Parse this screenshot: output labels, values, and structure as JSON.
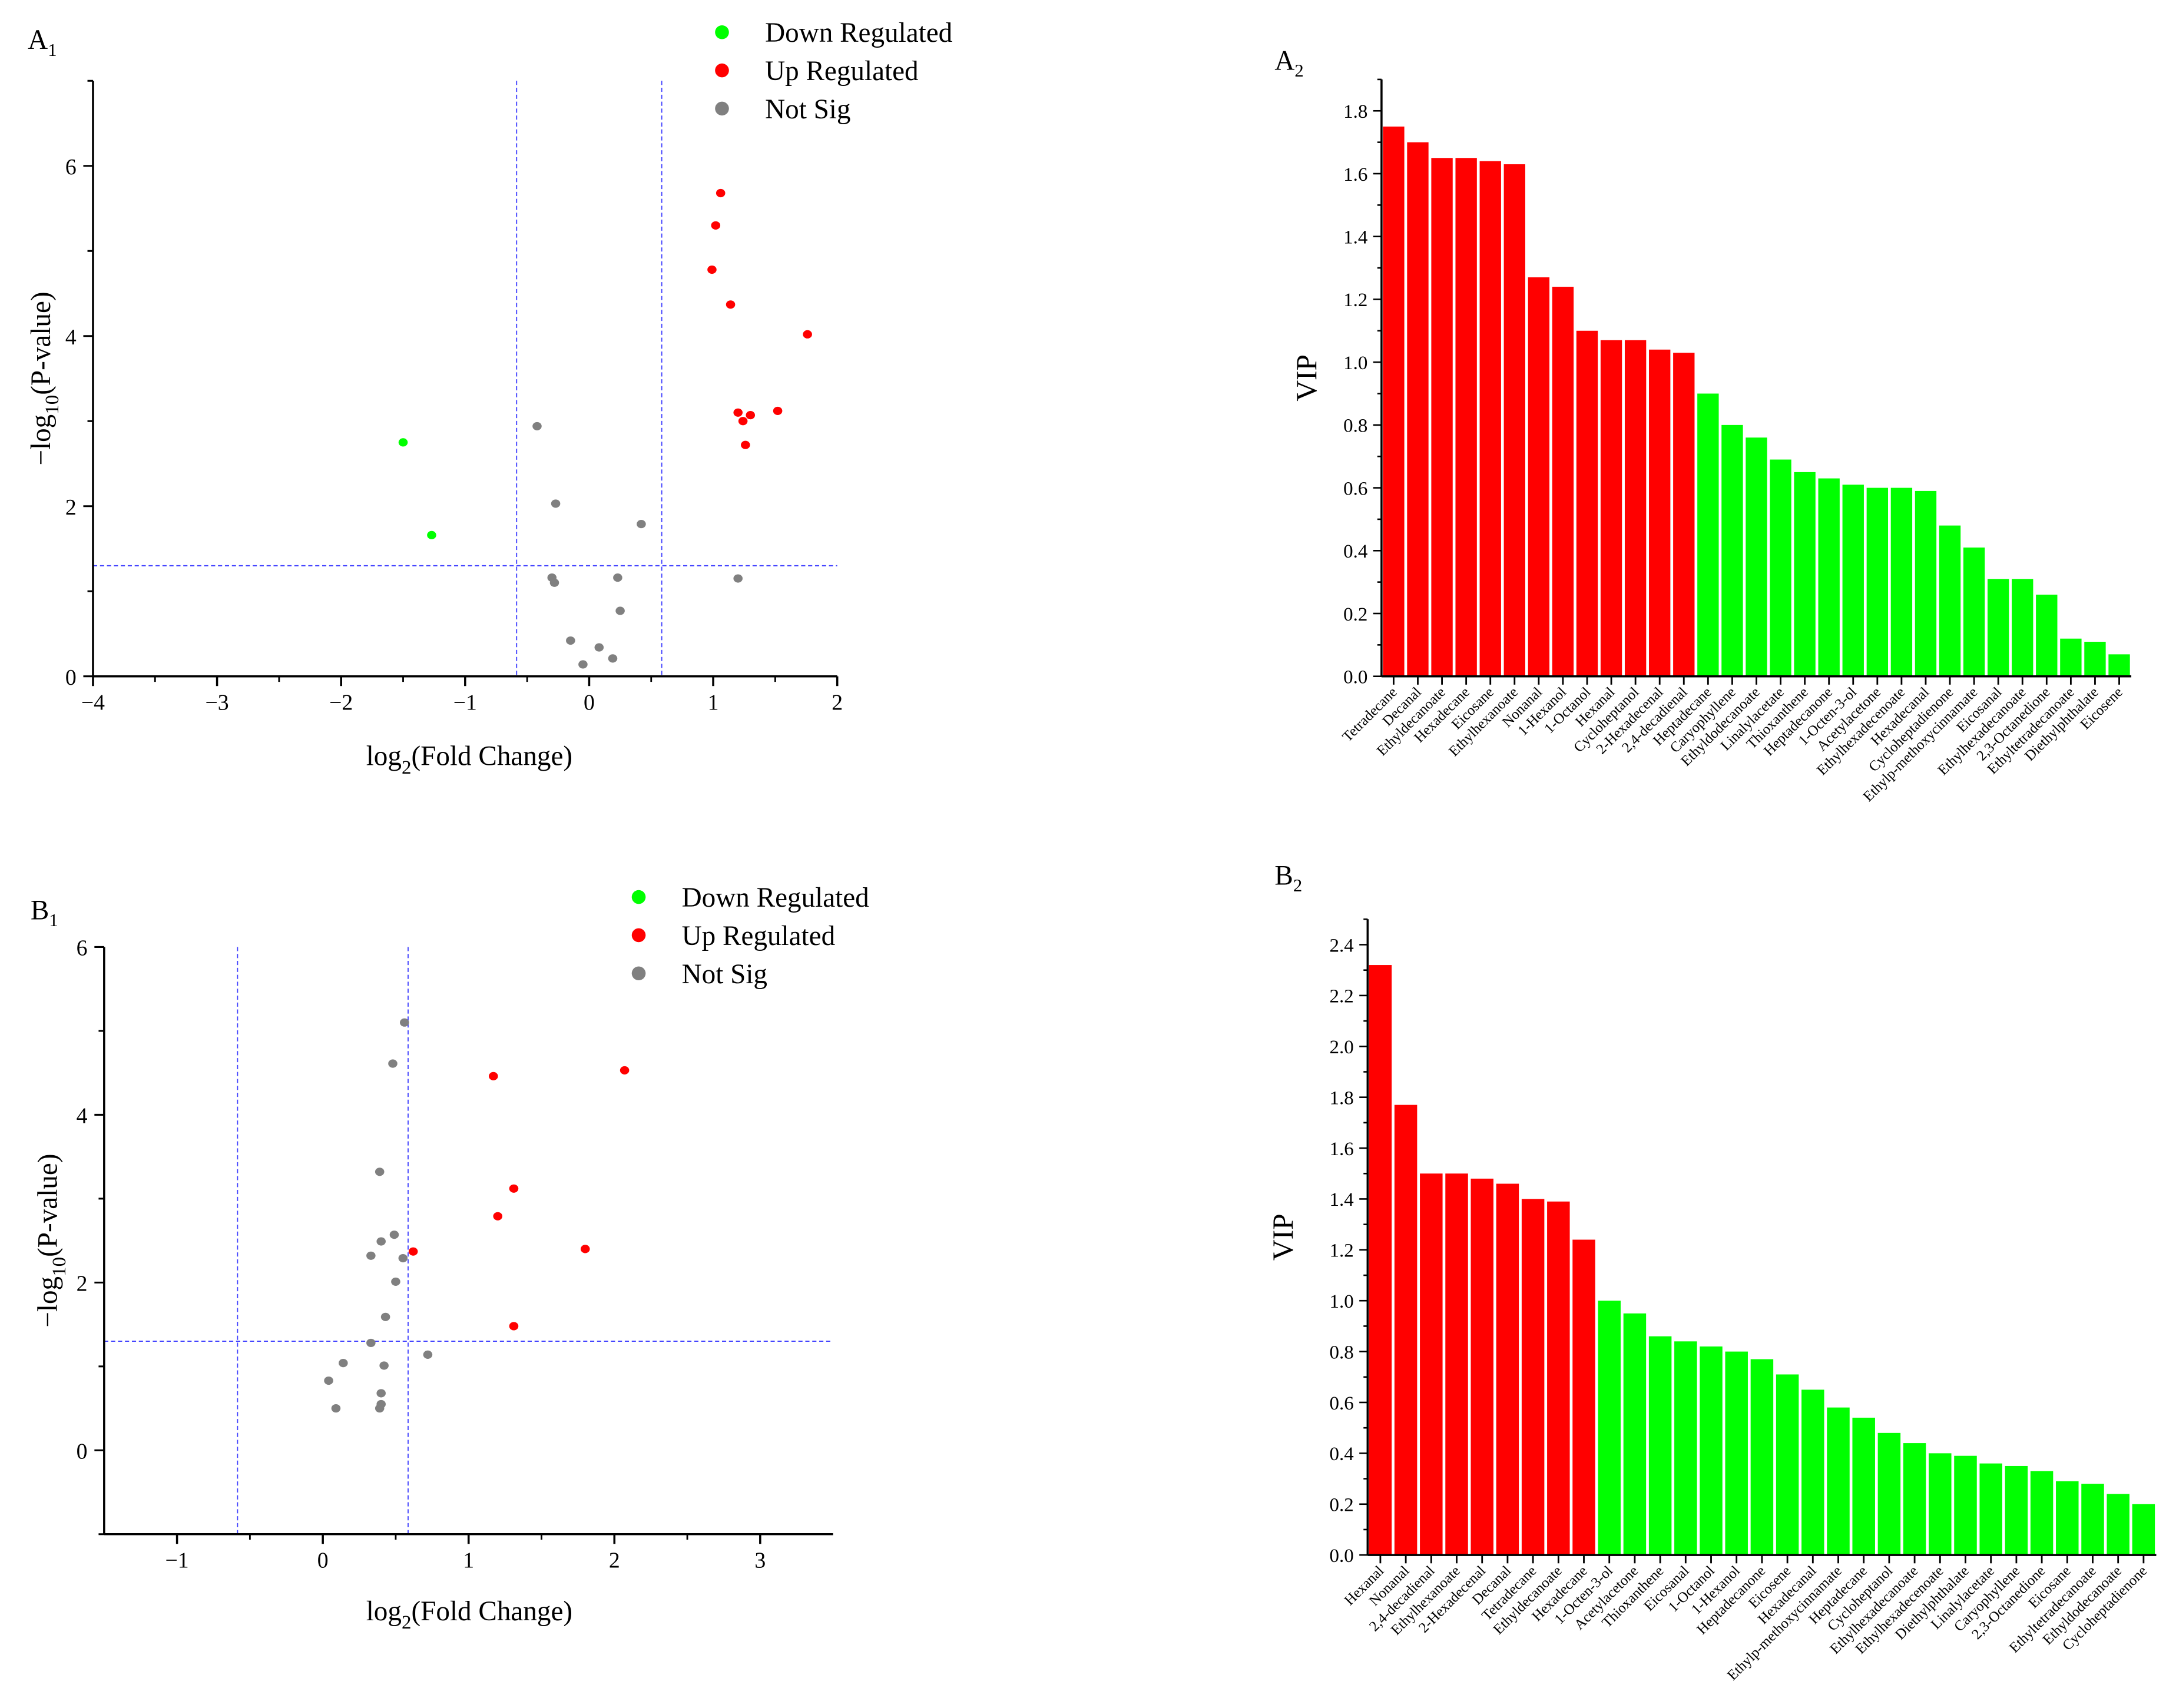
{
  "colors": {
    "down": "#00ff00",
    "up": "#ff0000",
    "notsig": "#808080",
    "threshold": "#4444ff",
    "bar_up": "#ff0000",
    "bar_down": "#00ff00"
  },
  "chart_data": [
    {
      "id": "A1",
      "panel": {
        "letter": "A",
        "sub": "1"
      },
      "type": "scatter",
      "xlabel": {
        "pre": "log",
        "sub": "2",
        "post": "(Fold Change)"
      },
      "ylabel": {
        "pre": "−log",
        "sub": "10",
        "post": "(P-value)"
      },
      "xlim": [
        -4,
        2
      ],
      "ylim": [
        0,
        7
      ],
      "xticks": [
        -4,
        -3,
        -2,
        -1,
        0,
        1,
        2
      ],
      "xtick_labels": [
        "−4",
        "−3",
        "−2",
        "−1",
        "0",
        "1",
        "2"
      ],
      "yticks": [
        0,
        2,
        4,
        6
      ],
      "ytick_labels": [
        "0",
        "2",
        "4",
        "6"
      ],
      "thresholds": {
        "x": [
          -0.585,
          0.585
        ],
        "y": 1.3
      },
      "legend": {
        "placement": "top-center",
        "entries": [
          "Down Regulated",
          "Up Regulated",
          "Not Sig"
        ]
      },
      "series": [
        {
          "name": "Down Regulated",
          "key": "down",
          "points": [
            [
              -1.5,
              2.75
            ],
            [
              -1.27,
              1.66
            ]
          ]
        },
        {
          "name": "Up Regulated",
          "key": "up",
          "points": [
            [
              1.06,
              5.68
            ],
            [
              1.02,
              5.3
            ],
            [
              0.99,
              4.78
            ],
            [
              1.14,
              4.37
            ],
            [
              1.76,
              4.02
            ],
            [
              1.2,
              3.1
            ],
            [
              1.24,
              3.0
            ],
            [
              1.3,
              3.07
            ],
            [
              1.52,
              3.12
            ],
            [
              1.26,
              2.72
            ]
          ]
        },
        {
          "name": "Not Sig",
          "key": "notsig",
          "points": [
            [
              -0.42,
              2.94
            ],
            [
              -0.27,
              2.03
            ],
            [
              0.42,
              1.79
            ],
            [
              -0.3,
              1.16
            ],
            [
              -0.28,
              1.1
            ],
            [
              0.23,
              1.16
            ],
            [
              0.25,
              0.77
            ],
            [
              -0.15,
              0.42
            ],
            [
              0.08,
              0.34
            ],
            [
              0.19,
              0.21
            ],
            [
              -0.05,
              0.14
            ],
            [
              1.2,
              1.15
            ]
          ]
        }
      ]
    },
    {
      "id": "A2",
      "panel": {
        "letter": "A",
        "sub": "2"
      },
      "type": "bar",
      "ylabel": "VIP",
      "ylim": [
        0,
        1.9
      ],
      "yticks": [
        0,
        0.2,
        0.4,
        0.6,
        0.8,
        1.0,
        1.2,
        1.4,
        1.6,
        1.8
      ],
      "ytick_labels": [
        "0.0",
        "0.2",
        "0.4",
        "0.6",
        "0.8",
        "1.0",
        "1.2",
        "1.4",
        "1.6",
        "1.8"
      ],
      "categories": [
        "Tetradecane",
        "Decanal",
        "Ethyldecanoate",
        "Hexadecane",
        "Eicosane",
        "Ethylhexanoate",
        "Nonanal",
        "1-Hexanol",
        "1-Octanol",
        "Hexanal",
        "Cycloheptanol",
        "2-Hexadecenal",
        "2,4-decadienal",
        "Heptadecane",
        "Caryophyllene",
        "Ethyldodecanoate",
        "Linalylacetate",
        "Thioxanthene",
        "Heptadecanone",
        "1-Octen-3-ol",
        "Acetylacetone",
        "Ethylhexadecenoate",
        "Hexadecanal",
        "Cycloheptadienone",
        "Ethylp-methoxycinnamate",
        "Eicosanal",
        "Ethylhexadecanoate",
        "2,3-Octanedione",
        "Ethyltetradecanoate",
        "Diethylphthalate",
        "Eicosene"
      ],
      "values": [
        1.75,
        1.7,
        1.65,
        1.65,
        1.64,
        1.63,
        1.27,
        1.24,
        1.1,
        1.07,
        1.07,
        1.04,
        1.03,
        0.9,
        0.8,
        0.76,
        0.69,
        0.65,
        0.63,
        0.61,
        0.6,
        0.6,
        0.59,
        0.48,
        0.41,
        0.31,
        0.31,
        0.26,
        0.12,
        0.11,
        0.07
      ]
    },
    {
      "id": "B1",
      "panel": {
        "letter": "B",
        "sub": "1"
      },
      "type": "scatter",
      "xlabel": {
        "pre": "log",
        "sub": "2",
        "post": "(Fold Change)"
      },
      "ylabel": {
        "pre": "−log",
        "sub": "10",
        "post": "(P-value)"
      },
      "xlim": [
        -1.5,
        3.5
      ],
      "ylim": [
        -1,
        6
      ],
      "xticks": [
        -1,
        0,
        1,
        2,
        3
      ],
      "xtick_labels": [
        "−1",
        "0",
        "1",
        "2",
        "3"
      ],
      "yticks": [
        0,
        2,
        4,
        6
      ],
      "ytick_labels": [
        "0",
        "2",
        "4",
        "6"
      ],
      "thresholds": {
        "x": [
          -0.585,
          0.585
        ],
        "y": 1.3
      },
      "legend": {
        "placement": "top-right",
        "entries": [
          "Down Regulated",
          "Up Regulated",
          "Not Sig"
        ]
      },
      "series": [
        {
          "name": "Down Regulated",
          "key": "down",
          "points": []
        },
        {
          "name": "Up Regulated",
          "key": "up",
          "points": [
            [
              1.17,
              4.46
            ],
            [
              2.07,
              4.53
            ],
            [
              1.31,
              3.12
            ],
            [
              1.2,
              2.79
            ],
            [
              0.62,
              2.37
            ],
            [
              1.8,
              2.4
            ],
            [
              1.31,
              1.48
            ]
          ]
        },
        {
          "name": "Not Sig",
          "key": "notsig",
          "points": [
            [
              0.56,
              5.1
            ],
            [
              0.48,
              4.61
            ],
            [
              0.39,
              3.32
            ],
            [
              0.4,
              2.49
            ],
            [
              0.49,
              2.57
            ],
            [
              0.33,
              2.32
            ],
            [
              0.55,
              2.29
            ],
            [
              0.5,
              2.01
            ],
            [
              0.43,
              1.59
            ],
            [
              0.33,
              1.28
            ],
            [
              0.14,
              1.04
            ],
            [
              0.72,
              1.14
            ],
            [
              0.42,
              1.01
            ],
            [
              0.04,
              0.83
            ],
            [
              0.4,
              0.68
            ],
            [
              0.4,
              0.55
            ],
            [
              0.39,
              0.5
            ],
            [
              0.09,
              0.5
            ]
          ]
        }
      ]
    },
    {
      "id": "B2",
      "panel": {
        "letter": "B",
        "sub": "2"
      },
      "type": "bar",
      "ylabel": "VIP",
      "ylim": [
        0,
        2.5
      ],
      "yticks": [
        0,
        0.2,
        0.4,
        0.6,
        0.8,
        1.0,
        1.2,
        1.4,
        1.6,
        1.8,
        2.0,
        2.2,
        2.4
      ],
      "ytick_labels": [
        "0.0",
        "0.2",
        "0.4",
        "0.6",
        "0.8",
        "1.0",
        "1.2",
        "1.4",
        "1.6",
        "1.8",
        "2.0",
        "2.2",
        "2.4"
      ],
      "categories": [
        "Hexanal",
        "Nonanal",
        "2,4-decadienal",
        "Ethylhexanoate",
        "2-Hexadecenal",
        "Decanal",
        "Tetradecane",
        "Ethyldecanoate",
        "Hexadecane",
        "1-Octen-3-ol",
        "Acetylacetone",
        "Thioxanthene",
        "Eicosanal",
        "1-Octanol",
        "1-Hexanol",
        "Heptadecanone",
        "Eicosene",
        "Hexadecanal",
        "Ethylp-methoxycinnamate",
        "Heptadecane",
        "Cycloheptanol",
        "Ethylhexadecanoate",
        "Ethylhexadecenoate",
        "Diethylphthalate",
        "Linalylacetate",
        "Caryophyllene",
        "2,3-Octanedione",
        "Eicosane",
        "Ethyltetradecanoate",
        "Ethyldodecanoate",
        "Cycloheptadienone"
      ],
      "values": [
        2.32,
        1.77,
        1.5,
        1.5,
        1.48,
        1.46,
        1.4,
        1.39,
        1.24,
        1.0,
        0.95,
        0.86,
        0.84,
        0.82,
        0.8,
        0.77,
        0.71,
        0.65,
        0.58,
        0.54,
        0.48,
        0.44,
        0.4,
        0.39,
        0.36,
        0.35,
        0.33,
        0.29,
        0.28,
        0.24,
        0.2
      ]
    }
  ]
}
